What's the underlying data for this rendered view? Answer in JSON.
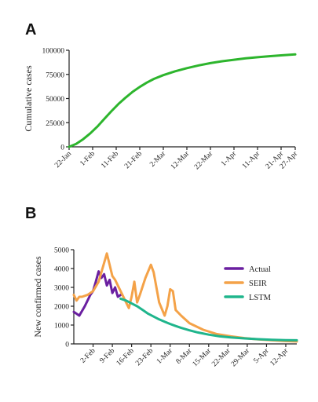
{
  "chart_data": [
    {
      "panel": "A",
      "type": "line",
      "ylabel": "Cumulative cases",
      "ylim": [
        0,
        100000
      ],
      "yticks": [
        "0",
        "25000",
        "50000",
        "75000",
        "100000"
      ],
      "x_ticks": [
        "22-Jan",
        "1-Feb",
        "11-Feb",
        "21-Feb",
        "2-Mar",
        "12-Mar",
        "22-Mar",
        "1-Apr",
        "11-Apr",
        "21-Apr",
        "27-Apr"
      ],
      "x_tick_days": [
        0,
        10,
        20,
        30,
        40,
        50,
        60,
        70,
        80,
        90,
        96
      ],
      "grid": false,
      "series": [
        {
          "color": "#2db52d",
          "x": [
            0,
            3,
            6,
            9,
            12,
            15,
            18,
            21,
            24,
            27,
            30,
            33,
            36,
            40,
            45,
            50,
            55,
            60,
            65,
            70,
            75,
            80,
            85,
            90,
            96
          ],
          "y": [
            0,
            3000,
            8000,
            14000,
            21000,
            29000,
            37000,
            44500,
            51000,
            57000,
            62000,
            66500,
            70300,
            74200,
            78200,
            81500,
            84300,
            86700,
            88600,
            90200,
            91600,
            92800,
            93800,
            94700,
            95700
          ]
        }
      ]
    },
    {
      "panel": "B",
      "type": "line",
      "ylabel": "New confirmed cases",
      "ylim": [
        0,
        5000
      ],
      "yticks": [
        "0",
        "1000",
        "2000",
        "3000",
        "4000",
        "5000"
      ],
      "x_ticks": [
        "2-Feb",
        "9-Feb",
        "16-Feb",
        "23-Feb",
        "1-Mar",
        "8-Mar",
        "15-Mar",
        "22-Mar",
        "29-Mar",
        "5-Apr",
        "12-Apr"
      ],
      "x_tick_days": [
        0,
        7,
        14,
        21,
        28,
        35,
        42,
        49,
        56,
        63,
        70
      ],
      "xlim": [
        -7,
        74
      ],
      "grid": false,
      "legend": {
        "placement": "right",
        "entries": [
          "Actual",
          "SEIR",
          "LSTM"
        ]
      },
      "series": [
        {
          "name": "Actual",
          "color": "#6a1fa0",
          "x": [
            -7,
            -5,
            -3,
            -1,
            0,
            1,
            2,
            3,
            4,
            5,
            6,
            7,
            8,
            9,
            10
          ],
          "y": [
            1700,
            1500,
            2000,
            2600,
            2800,
            3300,
            3850,
            3500,
            3700,
            3100,
            3400,
            2700,
            3000,
            2500,
            2600
          ]
        },
        {
          "name": "SEIR",
          "color": "#f4a248",
          "x": [
            -7,
            -6,
            -5,
            -4,
            -2,
            0,
            2,
            4,
            5,
            6,
            7,
            8,
            10,
            12,
            13,
            14,
            15,
            16,
            17,
            19,
            21,
            22,
            24,
            26,
            27,
            28,
            29,
            30,
            32,
            35,
            40,
            45,
            50,
            55,
            60,
            65,
            70,
            74
          ],
          "y": [
            2600,
            2300,
            2500,
            2500,
            2600,
            2800,
            3300,
            4300,
            4800,
            4200,
            3600,
            3400,
            2800,
            2200,
            1900,
            2500,
            3300,
            2200,
            2600,
            3500,
            4200,
            3800,
            2200,
            1500,
            2000,
            2900,
            2800,
            1800,
            1500,
            1100,
            750,
            520,
            400,
            310,
            240,
            190,
            150,
            130
          ]
        },
        {
          "name": "LSTM",
          "color": "#1fb58c",
          "x": [
            10,
            12,
            14,
            16,
            18,
            20,
            22,
            24,
            26,
            28,
            30,
            32,
            35,
            38,
            42,
            46,
            50,
            55,
            60,
            65,
            70,
            74
          ],
          "y": [
            2400,
            2300,
            2150,
            2000,
            1800,
            1600,
            1450,
            1300,
            1180,
            1060,
            950,
            850,
            720,
            610,
            490,
            400,
            340,
            290,
            250,
            220,
            200,
            190
          ]
        }
      ]
    }
  ]
}
